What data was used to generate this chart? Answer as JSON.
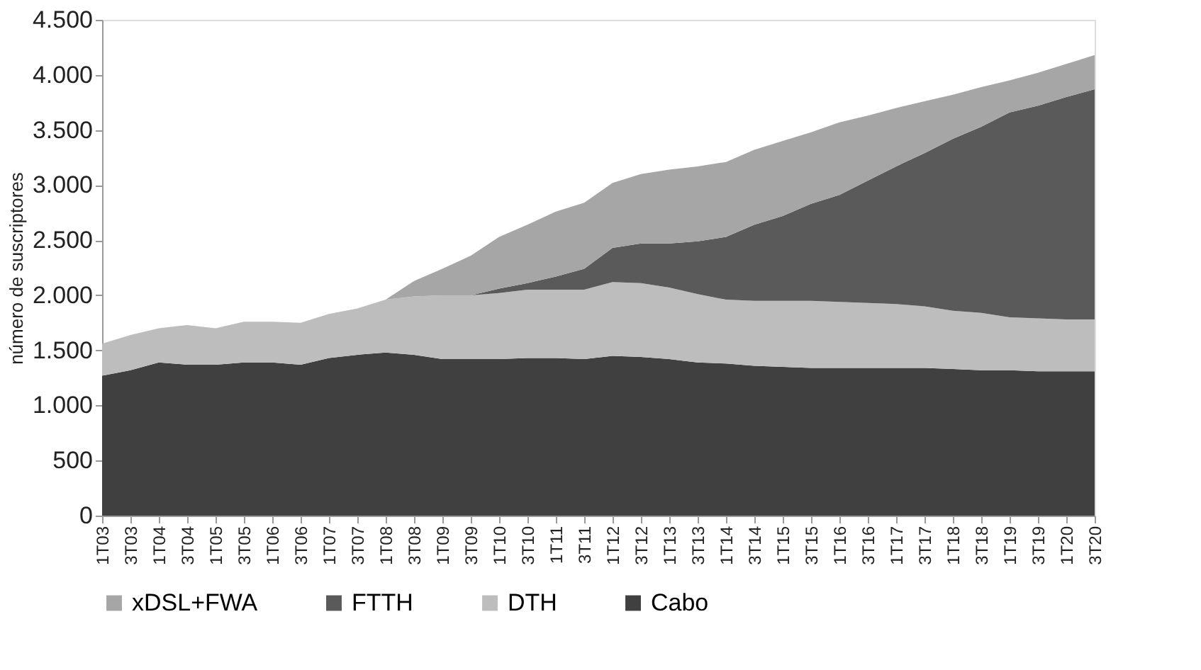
{
  "chart_data": {
    "type": "area",
    "stacked": true,
    "ylabel": "número de suscriptores",
    "categories": [
      "1T03",
      "3T03",
      "1T04",
      "3T04",
      "1T05",
      "3T05",
      "1T06",
      "3T06",
      "1T07",
      "3T07",
      "1T08",
      "3T08",
      "1T09",
      "3T09",
      "1T10",
      "3T10",
      "1T11",
      "3T11",
      "1T12",
      "3T12",
      "1T13",
      "3T13",
      "1T14",
      "3T14",
      "1T15",
      "3T15",
      "1T16",
      "3T16",
      "1T17",
      "3T17",
      "1T18",
      "3T18",
      "1T19",
      "3T19",
      "1T20",
      "3T20"
    ],
    "series": [
      {
        "name": "Cabo",
        "color": "#404040",
        "values": [
          1270,
          1320,
          1390,
          1370,
          1370,
          1390,
          1390,
          1370,
          1430,
          1460,
          1480,
          1460,
          1420,
          1420,
          1420,
          1430,
          1430,
          1420,
          1450,
          1440,
          1420,
          1390,
          1380,
          1360,
          1350,
          1340,
          1340,
          1340,
          1340,
          1340,
          1330,
          1320,
          1320,
          1310,
          1310,
          1310
        ]
      },
      {
        "name": "DTH",
        "color": "#bdbdbd",
        "values": [
          290,
          320,
          310,
          360,
          330,
          370,
          370,
          380,
          400,
          420,
          480,
          530,
          580,
          580,
          600,
          620,
          620,
          630,
          670,
          670,
          650,
          620,
          580,
          590,
          600,
          610,
          600,
          590,
          580,
          560,
          530,
          520,
          480,
          480,
          470,
          470
        ]
      },
      {
        "name": "FTTH",
        "color": "#5a5a5a",
        "values": [
          0,
          0,
          0,
          0,
          0,
          0,
          0,
          0,
          0,
          0,
          0,
          0,
          0,
          0,
          40,
          60,
          120,
          190,
          310,
          360,
          400,
          480,
          570,
          690,
          770,
          880,
          970,
          1110,
          1250,
          1390,
          1560,
          1690,
          1860,
          1930,
          2020,
          2090
        ]
      },
      {
        "name": "xDSL+FWA",
        "color": "#a6a6a6",
        "values": [
          0,
          0,
          0,
          0,
          0,
          0,
          0,
          0,
          0,
          0,
          0,
          140,
          240,
          360,
          470,
          530,
          590,
          600,
          590,
          630,
          670,
          680,
          680,
          680,
          680,
          650,
          660,
          590,
          530,
          470,
          400,
          360,
          290,
          300,
          300,
          310
        ]
      }
    ],
    "ylim": [
      0,
      4500
    ],
    "yticks": [
      0,
      500,
      {
        "value": 1000,
        "label": "1.000"
      },
      {
        "value": 1500,
        "label": "1.500"
      },
      {
        "value": 2000,
        "label": "2.000"
      },
      {
        "value": 2500,
        "label": "2.500"
      },
      {
        "value": 3000,
        "label": "3.000"
      },
      {
        "value": 3500,
        "label": "3.500"
      },
      {
        "value": 4000,
        "label": "4.000"
      },
      {
        "value": 4500,
        "label": "4.500"
      }
    ],
    "grid": false,
    "legend": "bottom"
  }
}
